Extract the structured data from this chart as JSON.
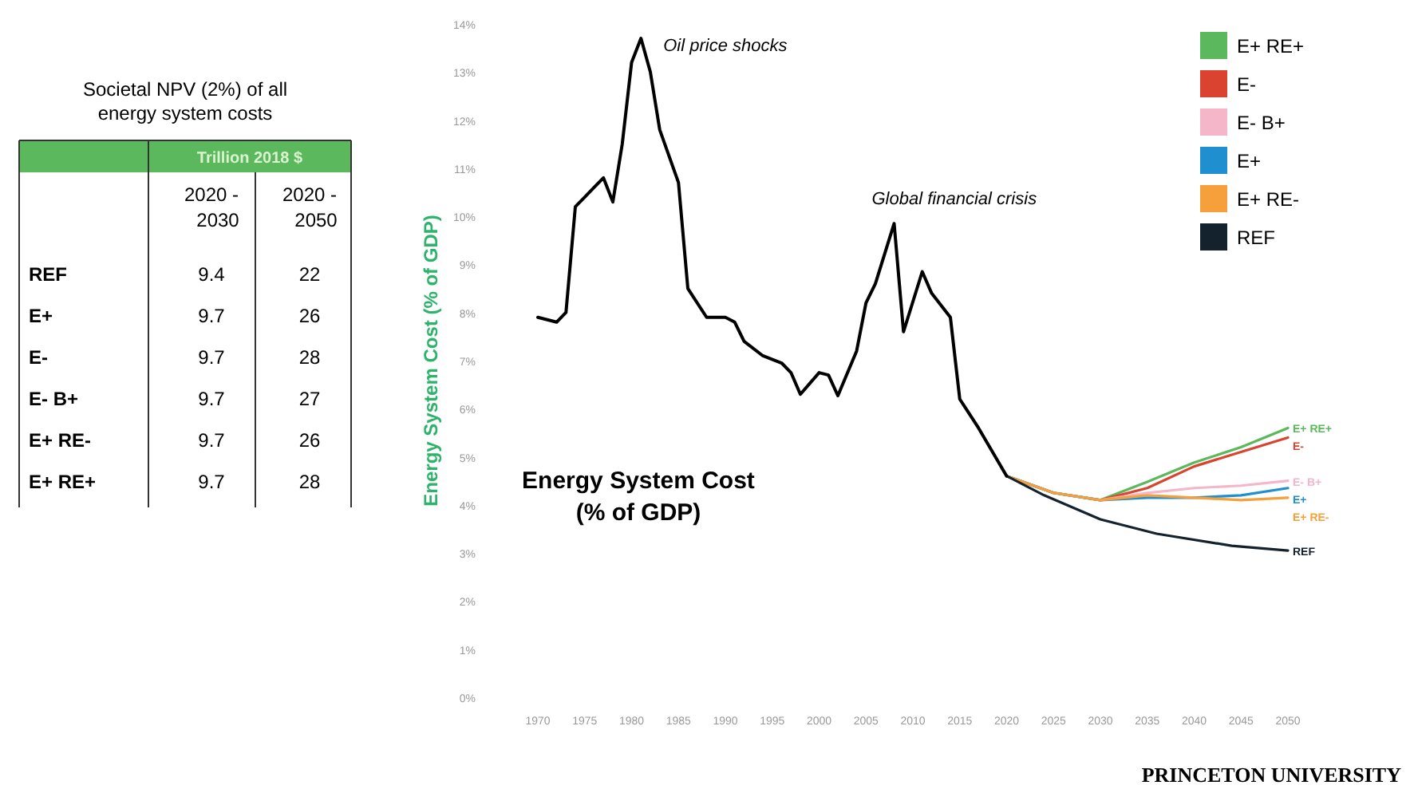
{
  "chart_data": [
    {
      "type": "other",
      "title": "Societal NPV (2%) of all\nenergy system costs",
      "subtitle": "Trillion 2018 $",
      "categories": [
        "2020 -\n2030",
        "2020 -\n2050"
      ],
      "y_categories": [
        "REF",
        "E+",
        "E-",
        "E- B+",
        "E+ RE-",
        "E+ RE+"
      ],
      "cell_labels": [
        [
          "9.4",
          "22"
        ],
        [
          "9.7",
          "26"
        ],
        [
          "9.7",
          "28"
        ],
        [
          "9.7",
          "27"
        ],
        [
          "9.7",
          "26"
        ],
        [
          "9.7",
          "28"
        ]
      ]
    },
    {
      "type": "line",
      "title": "Energy System Cost\n(% of GDP)",
      "ylabel": "Energy System Cost (% of GDP)",
      "xlim": [
        1970,
        2050
      ],
      "xticks": [
        1970,
        1975,
        1980,
        1985,
        1990,
        1995,
        2000,
        2005,
        2010,
        2015,
        2020,
        2025,
        2030,
        2035,
        2040,
        2045,
        2050
      ],
      "ylim": [
        0,
        14
      ],
      "yticks": [
        {
          "value": 0,
          "label": "0%"
        },
        {
          "value": 1,
          "label": "1%"
        },
        {
          "value": 2,
          "label": "2%"
        },
        {
          "value": 3,
          "label": "3%"
        },
        {
          "value": 4,
          "label": "4%"
        },
        {
          "value": 5,
          "label": "5%"
        },
        {
          "value": 6,
          "label": "6%"
        },
        {
          "value": 7,
          "label": "7%"
        },
        {
          "value": 8,
          "label": "8%"
        },
        {
          "value": 9,
          "label": "9%"
        },
        {
          "value": 10,
          "label": "10%"
        },
        {
          "value": 11,
          "label": "11%"
        },
        {
          "value": 12,
          "label": "12%"
        },
        {
          "value": 13,
          "label": "13%"
        },
        {
          "value": 14,
          "label": "14%"
        }
      ],
      "grid": false,
      "legend": "top right",
      "marker": "none",
      "line_style": "solid",
      "annotations": [
        {
          "text": "Oil price shocks",
          "x": 1981,
          "y": 13.7
        },
        {
          "text": "Global financial crisis",
          "x": 2008,
          "y": 9.85
        },
        "PRINCETON UNIVERSITY"
      ],
      "series": [
        {
          "name": "E+ RE+",
          "color": "#5cb85c",
          "x": [
            2020,
            2025,
            2030,
            2035,
            2040,
            2045,
            2050
          ],
          "values": [
            4.6,
            4.25,
            4.1,
            4.48,
            4.88,
            5.2,
            5.6
          ]
        },
        {
          "name": "E-",
          "color": "#d9432f",
          "x": [
            2020,
            2025,
            2030,
            2035,
            2040,
            2045,
            2050
          ],
          "values": [
            4.6,
            4.25,
            4.1,
            4.35,
            4.8,
            5.1,
            5.4
          ]
        },
        {
          "name": "E- B+",
          "color": "#f4b6c8",
          "x": [
            2020,
            2025,
            2030,
            2035,
            2040,
            2045,
            2050
          ],
          "values": [
            4.6,
            4.25,
            4.1,
            4.25,
            4.35,
            4.4,
            4.5
          ]
        },
        {
          "name": "E+",
          "color": "#1f8fd0",
          "x": [
            2020,
            2025,
            2030,
            2035,
            2040,
            2045,
            2050
          ],
          "values": [
            4.6,
            4.25,
            4.1,
            4.15,
            4.15,
            4.2,
            4.35
          ]
        },
        {
          "name": "E+ RE-",
          "color": "#f5a03a",
          "x": [
            2020,
            2025,
            2030,
            2035,
            2040,
            2045,
            2050
          ],
          "values": [
            4.6,
            4.25,
            4.1,
            4.2,
            4.15,
            4.1,
            4.15
          ]
        },
        {
          "name": "REF",
          "color": "#14222e",
          "x": [
            2020,
            2024,
            2030,
            2036,
            2044,
            2050
          ],
          "values": [
            4.6,
            4.2,
            3.7,
            3.4,
            3.15,
            3.05
          ]
        },
        {
          "color": "#000000",
          "x": [
            1970,
            1972,
            1973,
            1974,
            1975,
            1976,
            1977,
            1978,
            1979,
            1980,
            1981,
            1982,
            1983,
            1985,
            1986,
            1988,
            1990,
            1991,
            1992,
            1994,
            1996,
            1997,
            1998,
            2000,
            2001,
            2002,
            2004,
            2005,
            2006,
            2008,
            2009,
            2011,
            2012,
            2014,
            2015,
            2017,
            2020
          ],
          "values": [
            7.9,
            7.8,
            8.0,
            10.2,
            10.4,
            10.6,
            10.8,
            10.3,
            11.5,
            13.2,
            13.7,
            13.0,
            11.8,
            10.7,
            8.5,
            7.9,
            7.9,
            7.8,
            7.4,
            7.1,
            6.95,
            6.75,
            6.3,
            6.75,
            6.7,
            6.27,
            7.2,
            8.2,
            8.6,
            9.85,
            7.6,
            8.85,
            8.4,
            7.9,
            6.2,
            5.6,
            4.6
          ]
        }
      ]
    }
  ]
}
